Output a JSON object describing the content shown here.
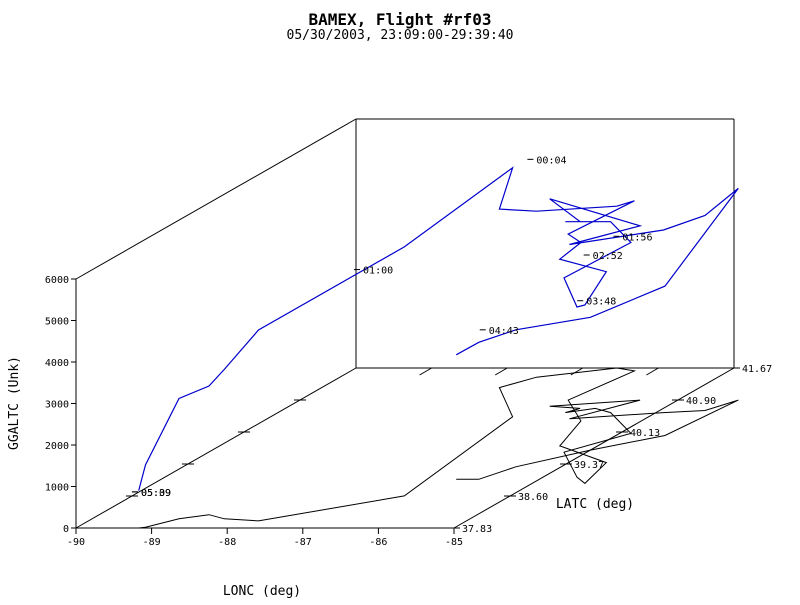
{
  "chart_data": {
    "type": "line3d",
    "title": "BAMEX, Flight #rf03",
    "subtitle": "05/30/2003, 23:09:00-29:39:40",
    "xlabel": "LONC (deg)",
    "ylabel": "LATC (deg)",
    "zlabel": "GGALTC (Unk)",
    "xlim": [
      -90,
      -85
    ],
    "ylim": [
      37.83,
      41.67
    ],
    "zlim": [
      0,
      6000
    ],
    "x_ticks": [
      "-90",
      "-89",
      "-88",
      "-87",
      "-86",
      "-85"
    ],
    "y_ticks": [
      "37.83",
      "38.60",
      "39.37",
      "40.13",
      "40.90",
      "41.67"
    ],
    "z_ticks": [
      "0",
      "1000",
      "2000",
      "3000",
      "4000",
      "5000",
      "6000"
    ],
    "grid": false,
    "series": [
      {
        "color": "#0000cc",
        "lon": [
          -89.17,
          -89.1,
          -88.85,
          -88.55,
          -88.25,
          -87.75,
          -86.4,
          -86.8,
          -87.65,
          -87.4,
          -86.55,
          -86.25,
          -86.45,
          -85.8,
          -85.5,
          -84.5,
          -84.3,
          -84.55,
          -85.3,
          -84.85,
          -85.6,
          -85.9,
          -86.2,
          -86.1,
          -86.55,
          -85.5,
          -86.0,
          -84.9,
          -84.4,
          -84.2,
          -84.35,
          -85.0,
          -85.6,
          -85.8,
          -86.1
        ],
        "lat": [
          37.83,
          37.85,
          38.05,
          38.15,
          38.05,
          38.0,
          38.6,
          40.5,
          41.2,
          41.45,
          41.67,
          41.6,
          40.9,
          40.4,
          39.8,
          39.4,
          38.9,
          39.05,
          39.65,
          40.1,
          40.6,
          40.7,
          40.6,
          40.7,
          40.75,
          40.9,
          40.45,
          40.6,
          40.65,
          40.9,
          40.05,
          39.7,
          39.3,
          39.0,
          39.0
        ],
        "alt": [
          900,
          1500,
          2900,
          3100,
          3600,
          4600,
          6000,
          6000,
          4300,
          4000,
          3900,
          4100,
          4000,
          4300,
          4500,
          4600,
          4300,
          4100,
          4200,
          4600,
          4600,
          4500,
          4600,
          4500,
          5000,
          4200,
          4200,
          4400,
          4700,
          5100,
          3600,
          3200,
          3300,
          3300,
          3000
        ]
      }
    ],
    "track_labels": [
      {
        "text": "00:04",
        "lon": -87.2,
        "lat": 41.2,
        "alt": 5500
      },
      {
        "text": "01:00",
        "lon": -87.95,
        "lat": 39.6,
        "alt": 4450
      },
      {
        "text": "01:56",
        "lon": -85.05,
        "lat": 40.15,
        "alt": 4700
      },
      {
        "text": "02:52",
        "lon": -85.25,
        "lat": 39.95,
        "alt": 4450
      },
      {
        "text": "03:48",
        "lon": -84.95,
        "lat": 39.55,
        "alt": 3750
      },
      {
        "text": "04:43",
        "lon": -85.95,
        "lat": 39.25,
        "alt": 3350
      },
      {
        "text": "05:09",
        "lon": -89.2,
        "lat": 37.85,
        "alt": 850
      },
      {
        "text": "05:39",
        "lon": -89.2,
        "lat": 37.85,
        "alt": 850
      }
    ],
    "ground_track": {
      "color": "#000000",
      "lon": [
        -89.17,
        -89.1,
        -88.85,
        -88.55,
        -88.25,
        -87.75,
        -86.4,
        -86.8,
        -87.65,
        -87.4,
        -86.55,
        -86.25,
        -86.45,
        -85.8,
        -85.5,
        -84.5,
        -84.3,
        -84.55,
        -85.3,
        -84.85,
        -85.6,
        -85.9,
        -86.2,
        -86.1,
        -86.55,
        -85.5,
        -86.0,
        -84.9,
        -84.4,
        -84.2,
        -84.35,
        -85.0,
        -85.6,
        -85.8,
        -86.1
      ],
      "lat": [
        37.83,
        37.85,
        38.05,
        38.15,
        38.05,
        38.0,
        38.6,
        40.5,
        41.2,
        41.45,
        41.67,
        41.6,
        40.9,
        40.4,
        39.8,
        39.4,
        38.9,
        39.05,
        39.65,
        40.1,
        40.6,
        40.7,
        40.6,
        40.7,
        40.75,
        40.9,
        40.45,
        40.6,
        40.65,
        40.9,
        40.05,
        39.7,
        39.3,
        39.0,
        39.0
      ]
    }
  }
}
